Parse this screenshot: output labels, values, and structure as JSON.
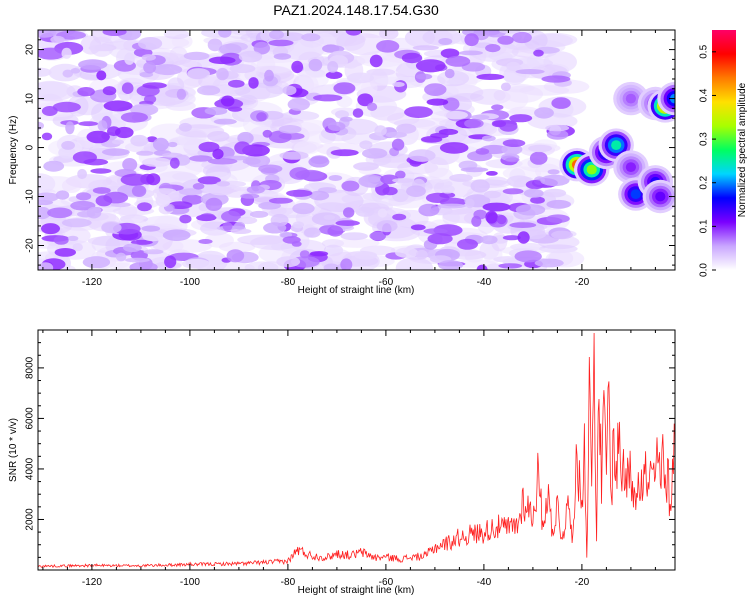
{
  "title": "PAZ1.2024.148.17.54.G30",
  "chart_data": [
    {
      "type": "heatmap",
      "title": "PAZ1.2024.148.17.54.G30",
      "xlabel": "Height of straight line (km)",
      "ylabel": "Frequency (Hz)",
      "xlim": [
        -131,
        -1
      ],
      "ylim": [
        -25,
        24
      ],
      "x_ticks": [
        -120,
        -100,
        -80,
        -60,
        -40,
        -20
      ],
      "y_ticks": [
        20,
        10,
        0,
        -10,
        -20
      ],
      "colorbar": {
        "label": "Normalized spectral amplitude",
        "range": [
          0.0,
          0.55
        ],
        "ticks": [
          0.0,
          0.1,
          0.2,
          0.3,
          0.4,
          0.5
        ],
        "palette": [
          "#ffffff",
          "#c9a6ff",
          "#7a00ff",
          "#0000ff",
          "#00d5ff",
          "#00ff60",
          "#a8ff00",
          "#ffe000",
          "#ff7a00",
          "#ff0000",
          "#ff0066"
        ]
      },
      "noise_region": {
        "x_range": [
          -131,
          -23
        ],
        "amplitude_range": [
          0.02,
          0.1
        ]
      },
      "features": [
        {
          "x": -21,
          "y": -3.5,
          "amplitude": 0.45
        },
        {
          "x": -18,
          "y": -4.5,
          "amplitude": 0.32
        },
        {
          "x": -15,
          "y": -1,
          "amplitude": 0.18
        },
        {
          "x": -13,
          "y": 0.5,
          "amplitude": 0.25
        },
        {
          "x": -10,
          "y": 10,
          "amplitude": 0.08
        },
        {
          "x": -10,
          "y": -4,
          "amplitude": 0.1
        },
        {
          "x": -9,
          "y": -9.5,
          "amplitude": 0.18
        },
        {
          "x": -5,
          "y": 9,
          "amplitude": 0.1
        },
        {
          "x": -5,
          "y": -7,
          "amplitude": 0.15
        },
        {
          "x": -4,
          "y": -10,
          "amplitude": 0.12
        },
        {
          "x": -3,
          "y": 8.5,
          "amplitude": 0.45
        },
        {
          "x": -1,
          "y": 10,
          "amplitude": 0.2
        }
      ]
    },
    {
      "type": "line",
      "xlabel": "Height of straight line (km)",
      "ylabel": "SNR (10 * v/v)",
      "xlim": [
        -131,
        -1
      ],
      "ylim": [
        0,
        9500
      ],
      "x_ticks": [
        -120,
        -100,
        -80,
        -60,
        -40,
        -20
      ],
      "y_ticks": [
        2000,
        4000,
        6000,
        8000
      ],
      "line_color": "#ff2020",
      "series": [
        {
          "x": [
            -131,
            -120,
            -110,
            -100,
            -90,
            -85,
            -80,
            -78,
            -75,
            -72,
            -70,
            -67,
            -65,
            -62,
            -60,
            -57,
            -55,
            -52,
            -50,
            -47,
            -45,
            -43,
            -40,
            -38,
            -35,
            -33,
            -32,
            -30,
            -29,
            -28,
            -27,
            -26,
            -25,
            -24,
            -23,
            -22,
            -21,
            -20,
            -19.5,
            -19,
            -18.5,
            -18,
            -17.5,
            -17,
            -16.5,
            -16,
            -15.5,
            -15,
            -14.5,
            -14,
            -13.5,
            -13,
            -12.5,
            -12,
            -11.5,
            -11,
            -10.5,
            -10,
            -9.5,
            -9,
            -8.5,
            -8,
            -7.5,
            -7,
            -6.5,
            -6,
            -5.5,
            -5,
            -4.5,
            -4,
            -3.5,
            -3,
            -2.5,
            -2,
            -1.5,
            -1
          ],
          "y": [
            150,
            180,
            170,
            220,
            250,
            300,
            350,
            800,
            550,
            500,
            650,
            580,
            700,
            480,
            520,
            430,
            500,
            550,
            900,
            1100,
            1300,
            1400,
            1500,
            1700,
            1650,
            1800,
            2800,
            2100,
            3700,
            1900,
            3000,
            1600,
            2500,
            1200,
            2600,
            1500,
            4300,
            2500,
            5500,
            500,
            7000,
            3500,
            9500,
            1000,
            7500,
            3200,
            6000,
            4300,
            6800,
            2700,
            5400,
            3500,
            5800,
            3400,
            4600,
            3100,
            4200,
            3600,
            3300,
            3100,
            4000,
            3700,
            3300,
            3900,
            3200,
            3600,
            3600,
            3700,
            4800,
            3100,
            4600,
            3000,
            4000,
            2400,
            4300,
            5300
          ]
        }
      ]
    }
  ]
}
